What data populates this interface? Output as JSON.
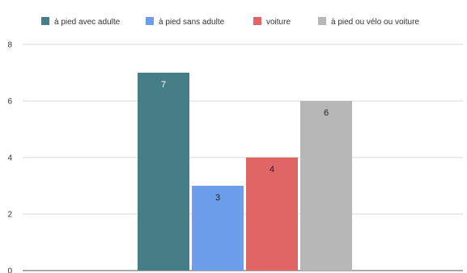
{
  "chart_data": {
    "type": "bar",
    "title": "",
    "xlabel": "",
    "ylabel": "",
    "ylim": [
      0,
      8
    ],
    "yticks": [
      0,
      2,
      4,
      6,
      8
    ],
    "grid": true,
    "legend_position": "top",
    "series": [
      {
        "name": "à pied avec adulte",
        "value": 7,
        "color": "#467e87"
      },
      {
        "name": "à pied sans adulte",
        "value": 3,
        "color": "#6d9eeb"
      },
      {
        "name": "voiture",
        "value": 4,
        "color": "#e06666"
      },
      {
        "name": "à pied ou vélo ou voiture",
        "value": 6,
        "color": "#b7b7b7"
      }
    ]
  }
}
